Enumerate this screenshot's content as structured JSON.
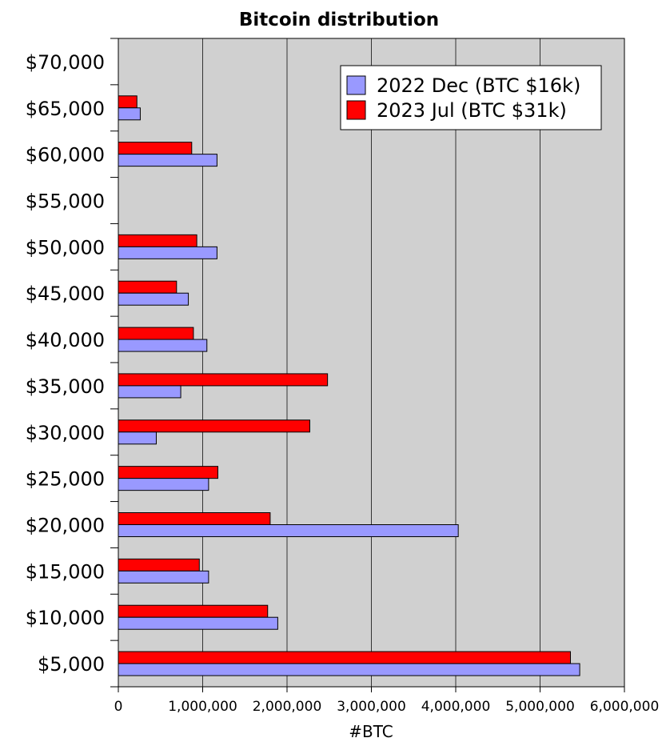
{
  "chart_data": {
    "type": "bar",
    "orientation": "horizontal",
    "title": "Bitcoin distribution",
    "xlabel": "#BTC",
    "ylabel": "",
    "categories": [
      "$5,000",
      "$10,000",
      "$15,000",
      "$20,000",
      "$25,000",
      "$30,000",
      "$35,000",
      "$40,000",
      "$45,000",
      "$50,000",
      "$55,000",
      "$60,000",
      "$65,000",
      "$70,000"
    ],
    "series": [
      {
        "name": "2022 Dec (BTC $16k)",
        "color": "#9999ff",
        "values": [
          5470000,
          1890000,
          1070000,
          4030000,
          1070000,
          450000,
          740000,
          1050000,
          830000,
          1170000,
          0,
          1170000,
          260000,
          0
        ]
      },
      {
        "name": "2023 Jul (BTC $31k)",
        "color": "#ff0000",
        "values": [
          5360000,
          1770000,
          960000,
          1800000,
          1180000,
          2270000,
          2480000,
          890000,
          690000,
          930000,
          0,
          870000,
          220000,
          0
        ]
      }
    ],
    "xlim": [
      0,
      6000000
    ],
    "xticks": [
      "0",
      "1,000,000",
      "2,000,000",
      "3,000,000",
      "4,000,000",
      "5,000,000",
      "6,000,000"
    ],
    "grid": "vertical",
    "background": "#d0d0d0",
    "legend_position": "top-right"
  }
}
